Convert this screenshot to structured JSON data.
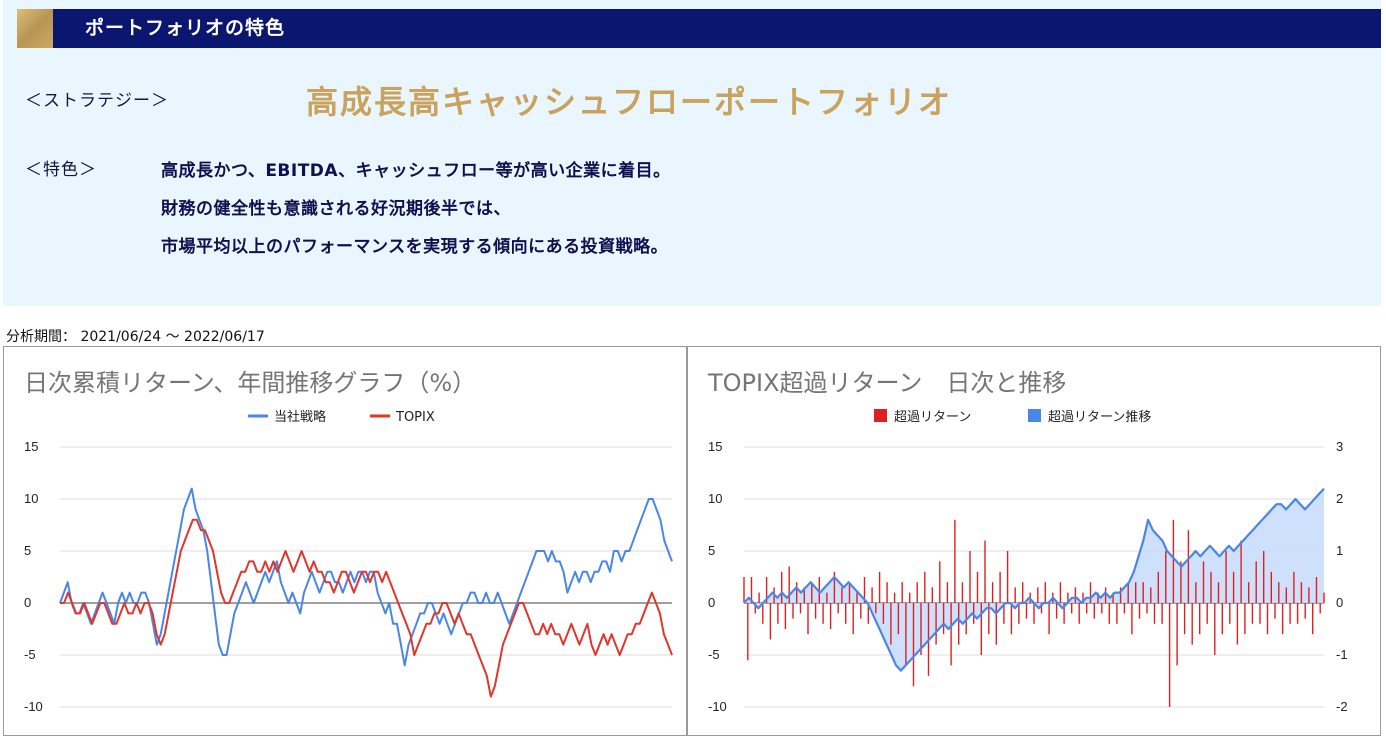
{
  "header": {
    "title": "ポートフォリオの特色"
  },
  "strategy": {
    "label": "＜ストラテジー＞",
    "name": "高成長高キャッシュフローポートフォリオ"
  },
  "features": {
    "label": "＜特色＞",
    "lines": [
      "高成長かつ、EBITDA、キャッシュフロー等が高い企業に着目。",
      "財務の健全性も意識される好況期後半では、",
      "市場平均以上のパフォーマンスを実現する傾向にある投資戦略。"
    ]
  },
  "period": {
    "text": "分析期間： 2021/06/24 〜 2022/06/17"
  },
  "colors": {
    "blue": "#4a86e8",
    "red": "#e0362c",
    "excess_bar": "#e02020",
    "fill_blue": "#c6dafa",
    "navy": "#0b1670",
    "gold": "#c9a25e"
  },
  "chart_data": [
    {
      "type": "line",
      "title": "日次累積リターン、年間推移グラフ（%）",
      "ylim": [
        -10,
        15
      ],
      "yticks": [
        "15",
        "10",
        "5",
        "0",
        "-5",
        "-10"
      ],
      "grid": true,
      "legend_position": "top",
      "series": [
        {
          "name": "当社戦略",
          "color": "#4a86e8",
          "values": [
            0,
            1,
            2,
            0,
            -1,
            -1,
            0,
            -1,
            -2,
            -1,
            0,
            1,
            0,
            -1,
            -2,
            0,
            1,
            0,
            1,
            0,
            0,
            1,
            1,
            0,
            -2,
            -4,
            -3,
            -1,
            1,
            3,
            5,
            7,
            9,
            10,
            11,
            9,
            8,
            7,
            5,
            2,
            -1,
            -4,
            -5,
            -5,
            -3,
            -1,
            0,
            1,
            2,
            1,
            0,
            1,
            2,
            3,
            2,
            3,
            4,
            2,
            1,
            0,
            1,
            0,
            -1,
            1,
            2,
            3,
            2,
            1,
            2,
            3,
            3,
            2,
            2,
            1,
            2,
            3,
            2,
            3,
            3,
            2,
            3,
            3,
            1,
            0,
            -1,
            0,
            -2,
            -2,
            -4,
            -6,
            -4,
            -3,
            -2,
            -1,
            -1,
            0,
            0,
            -1,
            -2,
            -1,
            -2,
            -3,
            -2,
            -1,
            0,
            0,
            1,
            1,
            0,
            0,
            1,
            0,
            0,
            1,
            0,
            -1,
            -2,
            -1,
            0,
            1,
            2,
            3,
            4,
            5,
            5,
            5,
            4,
            5,
            4,
            4,
            3,
            1,
            2,
            3,
            2,
            3,
            3,
            2,
            3,
            3,
            4,
            4,
            3,
            5,
            5,
            4,
            5,
            5,
            6,
            7,
            8,
            9,
            10,
            10,
            9,
            8,
            6,
            5,
            4
          ]
        },
        {
          "name": "TOPIX",
          "color": "#e0362c",
          "values": [
            0,
            0,
            1,
            0,
            -1,
            -1,
            0,
            -1,
            -2,
            -1,
            0,
            0,
            -1,
            -2,
            -2,
            -1,
            0,
            -1,
            -1,
            0,
            -1,
            0,
            0,
            -1,
            -3,
            -4,
            -3,
            -1,
            1,
            3,
            5,
            6,
            7,
            8,
            8,
            7,
            7,
            6,
            5,
            3,
            1,
            0,
            0,
            1,
            2,
            3,
            3,
            4,
            4,
            3,
            3,
            4,
            3,
            4,
            3,
            4,
            5,
            4,
            3,
            4,
            5,
            4,
            3,
            4,
            3,
            3,
            2,
            2,
            1,
            2,
            3,
            3,
            2,
            1,
            2,
            3,
            3,
            2,
            3,
            3,
            2,
            3,
            2,
            1,
            0,
            -1,
            -2,
            -3,
            -5,
            -4,
            -3,
            -2,
            -2,
            -1,
            -1,
            0,
            0,
            -1,
            -2,
            -1,
            -2,
            -3,
            -3,
            -4,
            -5,
            -6,
            -7,
            -9,
            -8,
            -6,
            -4,
            -3,
            -2,
            -1,
            0,
            0,
            -1,
            -2,
            -3,
            -3,
            -2,
            -3,
            -2,
            -3,
            -3,
            -4,
            -3,
            -2,
            -3,
            -4,
            -3,
            -2,
            -4,
            -5,
            -4,
            -3,
            -4,
            -3,
            -4,
            -5,
            -4,
            -3,
            -3,
            -2,
            -2,
            -1,
            0,
            1,
            0,
            -1,
            -3,
            -4,
            -5
          ]
        }
      ]
    },
    {
      "type": "bar+area",
      "title": "TOPIX超過リターン　日次と推移",
      "ylim": [
        -10,
        15
      ],
      "y2lim": [
        -2,
        3
      ],
      "yticks": [
        "15",
        "10",
        "5",
        "0",
        "-5",
        "-10"
      ],
      "y2ticks": [
        "3",
        "2",
        "1",
        "0",
        "-1",
        "-2"
      ],
      "grid": true,
      "legend_position": "top",
      "series": [
        {
          "name": "超過リターン",
          "color": "#e02020",
          "values": [
            2.5,
            -5.5,
            2.5,
            -1,
            1,
            -2,
            2.5,
            -3.5,
            1.5,
            -2,
            3,
            -2.5,
            3.5,
            -1.5,
            2,
            -1,
            1.5,
            -3,
            2,
            -1.5,
            2.5,
            -2,
            1,
            -2.5,
            3,
            -1,
            1.5,
            -2,
            2,
            -3,
            1,
            -1.5,
            2.5,
            -2,
            1.5,
            -1,
            3,
            -2,
            2,
            -4,
            1,
            -3,
            2,
            -6,
            1,
            -8,
            2,
            -5,
            3,
            -7,
            1.5,
            -4,
            4,
            -3,
            2,
            -6,
            8,
            -4,
            2,
            -3,
            5,
            -2,
            3,
            -5,
            6,
            -3,
            2,
            -4,
            3,
            -2,
            5,
            -3,
            1.5,
            -2,
            2,
            -1.5,
            1,
            -2,
            1.5,
            -1,
            2,
            -3,
            1,
            -1.5,
            2,
            -2,
            1,
            -1,
            1.5,
            -2,
            1,
            -1,
            2,
            -1.5,
            1,
            -1,
            1.5,
            -2,
            1,
            -2,
            1.5,
            -1,
            2,
            -3,
            2,
            -1.5,
            2,
            -1,
            1.5,
            -2,
            3,
            -2,
            5,
            -10,
            8,
            -6,
            4,
            -3,
            7,
            -4,
            2,
            -3,
            4,
            -2,
            3,
            -5,
            2,
            -3,
            5,
            -2,
            3,
            -4,
            6,
            -3,
            2,
            -2,
            4,
            -2,
            5,
            -3,
            3,
            -1.5,
            2,
            -3,
            1.5,
            -2,
            3,
            -2,
            2,
            -1.5,
            1.5,
            -3,
            2.5,
            -1,
            1
          ]
        },
        {
          "name": "超過リターン推移",
          "color": "#4a86e8",
          "values": [
            0,
            0.1,
            0,
            -0.1,
            0,
            0.1,
            0.2,
            0.1,
            0.2,
            0.1,
            0.2,
            0.3,
            0.2,
            0.3,
            0.4,
            0.3,
            0.2,
            0.3,
            0.4,
            0.5,
            0.4,
            0.3,
            0.4,
            0.3,
            0.2,
            0.1,
            0,
            -0.2,
            -0.4,
            -0.6,
            -0.8,
            -1,
            -1.2,
            -1.3,
            -1.2,
            -1.1,
            -1,
            -0.9,
            -0.8,
            -0.7,
            -0.6,
            -0.5,
            -0.4,
            -0.5,
            -0.4,
            -0.3,
            -0.4,
            -0.3,
            -0.2,
            -0.3,
            -0.2,
            -0.1,
            -0.1,
            -0.2,
            -0.1,
            0,
            0,
            -0.1,
            0,
            0,
            0.1,
            0,
            -0.1,
            0,
            0,
            0.1,
            0,
            -0.1,
            0,
            0.1,
            0.1,
            0,
            0.1,
            0.1,
            0.2,
            0.1,
            0.2,
            0.1,
            0.2,
            0.2,
            0.3,
            0.4,
            0.6,
            0.9,
            1.2,
            1.6,
            1.4,
            1.3,
            1.2,
            1,
            0.9,
            0.8,
            0.7,
            0.8,
            0.9,
            1,
            0.9,
            1,
            1.1,
            1,
            0.9,
            1,
            1.1,
            1,
            1.1,
            1.2,
            1.3,
            1.4,
            1.5,
            1.6,
            1.7,
            1.8,
            1.9,
            1.9,
            1.8,
            1.9,
            2,
            1.9,
            1.8,
            1.9,
            2,
            2.1,
            2.2
          ]
        }
      ]
    }
  ]
}
